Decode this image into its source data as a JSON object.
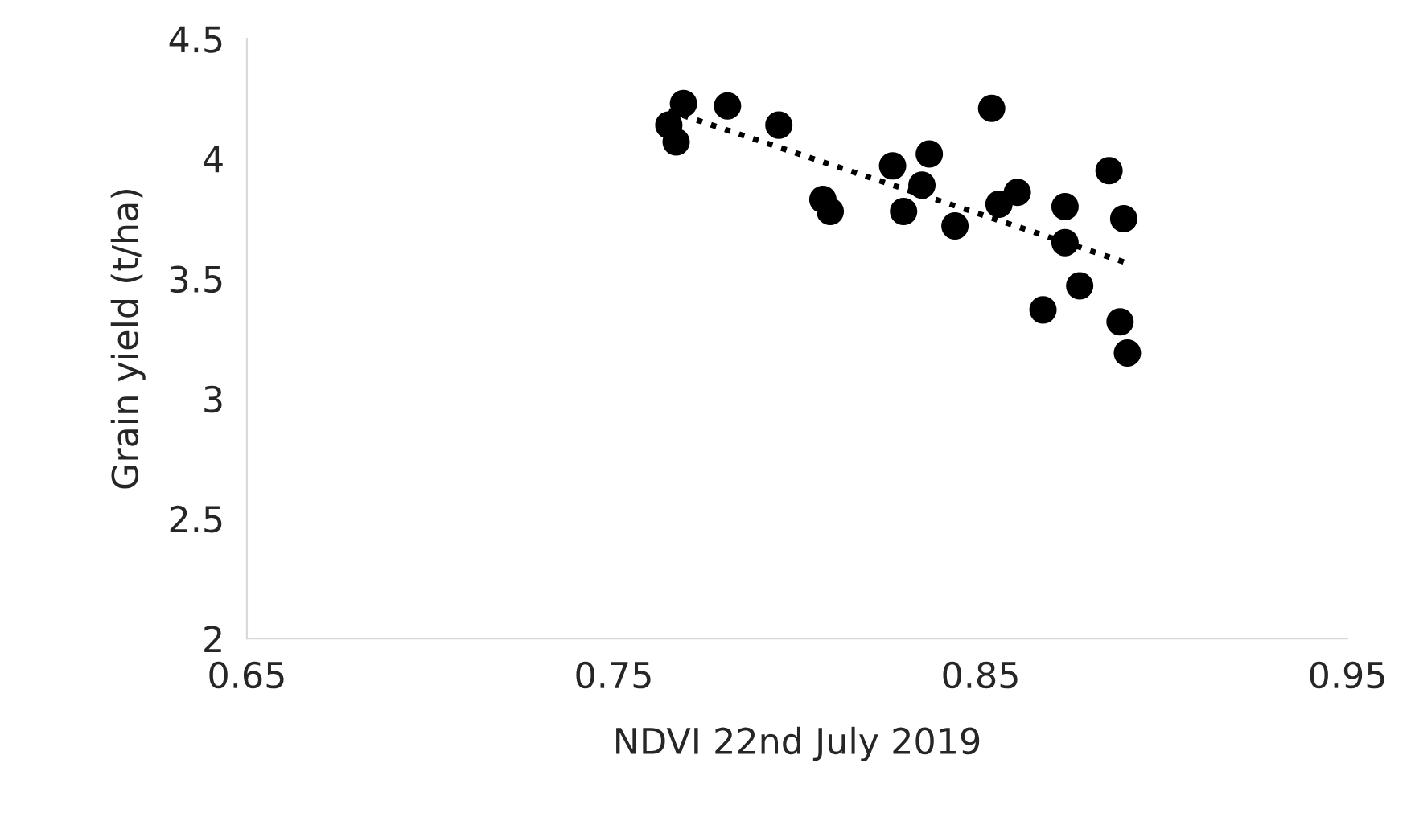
{
  "chart_data": {
    "type": "scatter",
    "xlabel": "NDVI 22nd July 2019",
    "ylabel": "Grain yield (t/ha)",
    "xlim": [
      0.65,
      0.95
    ],
    "xticks": [
      {
        "value": 0.65,
        "label": "0.65"
      },
      {
        "value": 0.75,
        "label": "0.75"
      },
      {
        "value": 0.85,
        "label": "0.85"
      },
      {
        "value": 0.95,
        "label": "0.95"
      }
    ],
    "ylim": [
      2,
      4.5
    ],
    "yticks": [
      2,
      {
        "value": 2.5,
        "label": "2.5"
      },
      3,
      {
        "value": 3.5,
        "label": "3.5"
      },
      4,
      {
        "value": 4.5,
        "label": "4.5"
      }
    ],
    "grid": false,
    "legend": false,
    "marker": "circle",
    "series": [
      {
        "color": "#000000",
        "x": [
          0.765,
          0.767,
          0.769,
          0.781,
          0.795,
          0.807,
          0.809,
          0.826,
          0.829,
          0.834,
          0.836,
          0.843,
          0.853,
          0.855,
          0.86,
          0.867,
          0.873,
          0.873,
          0.877,
          0.885,
          0.888,
          0.889,
          0.89
        ],
        "values": [
          4.14,
          4.07,
          4.23,
          4.22,
          4.14,
          3.83,
          3.78,
          3.97,
          3.78,
          3.89,
          4.02,
          3.72,
          4.21,
          3.81,
          3.86,
          3.37,
          3.65,
          3.8,
          3.47,
          3.95,
          3.32,
          3.75,
          3.19
        ]
      },
      {
        "type": "line",
        "color": "#000000",
        "line_style": "dotted",
        "marker": "none",
        "x": [
          0.765,
          0.889
        ],
        "values": [
          4.2,
          3.57
        ]
      }
    ]
  }
}
